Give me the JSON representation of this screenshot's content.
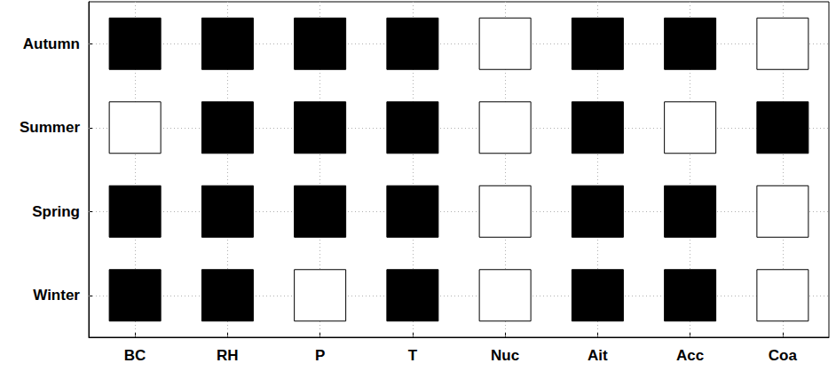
{
  "chart_data": {
    "type": "heatmap",
    "x": [
      "BC",
      "RH",
      "P",
      "T",
      "Nuc",
      "Ait",
      "Acc",
      "Coa"
    ],
    "y": [
      "Autumn",
      "Summer",
      "Spring",
      "Winter"
    ],
    "cells": [
      [
        1,
        1,
        1,
        1,
        0,
        1,
        1,
        0
      ],
      [
        0,
        1,
        1,
        1,
        0,
        1,
        0,
        1
      ],
      [
        1,
        1,
        1,
        1,
        0,
        1,
        1,
        0
      ],
      [
        1,
        1,
        0,
        1,
        0,
        1,
        1,
        0
      ]
    ],
    "colors": [
      "#ffffff",
      "#000000"
    ],
    "grid": true
  }
}
